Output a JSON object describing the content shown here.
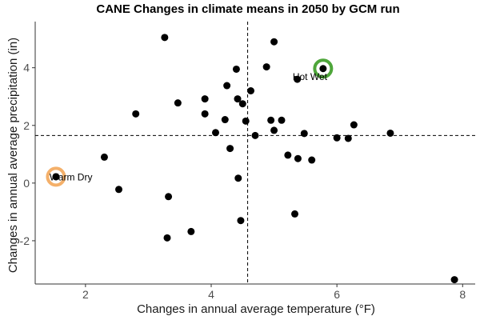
{
  "chart_data": {
    "type": "scatter",
    "title": "CANE Changes in climate means in 2050 by GCM run",
    "xlabel": "Changes in annual average temperature (°F)",
    "ylabel": "Changes in annual average precipitation (in)",
    "xlim": [
      1.2,
      8.2
    ],
    "ylim": [
      -3.5,
      5.6
    ],
    "x_ticks": [
      2,
      4,
      6,
      8
    ],
    "y_ticks": [
      -2,
      0,
      2,
      4
    ],
    "grid": false,
    "reference_lines": {
      "x": 4.58,
      "y": 1.65
    },
    "points": [
      {
        "x": 3.26,
        "y": 5.05
      },
      {
        "x": 5.0,
        "y": 4.9
      },
      {
        "x": 4.88,
        "y": 4.03
      },
      {
        "x": 4.4,
        "y": 3.95
      },
      {
        "x": 5.78,
        "y": 3.97
      },
      {
        "x": 5.37,
        "y": 3.6
      },
      {
        "x": 4.25,
        "y": 3.38
      },
      {
        "x": 4.63,
        "y": 3.2
      },
      {
        "x": 3.9,
        "y": 2.92
      },
      {
        "x": 4.42,
        "y": 2.92
      },
      {
        "x": 4.5,
        "y": 2.75
      },
      {
        "x": 3.47,
        "y": 2.78
      },
      {
        "x": 2.8,
        "y": 2.4
      },
      {
        "x": 3.9,
        "y": 2.4
      },
      {
        "x": 4.22,
        "y": 2.2
      },
      {
        "x": 4.55,
        "y": 2.15
      },
      {
        "x": 4.95,
        "y": 2.18
      },
      {
        "x": 5.12,
        "y": 2.18
      },
      {
        "x": 6.27,
        "y": 2.02
      },
      {
        "x": 5.0,
        "y": 1.83
      },
      {
        "x": 4.07,
        "y": 1.75
      },
      {
        "x": 4.7,
        "y": 1.65
      },
      {
        "x": 5.48,
        "y": 1.72
      },
      {
        "x": 6.85,
        "y": 1.73
      },
      {
        "x": 6.0,
        "y": 1.57
      },
      {
        "x": 6.18,
        "y": 1.55
      },
      {
        "x": 4.3,
        "y": 1.2
      },
      {
        "x": 5.22,
        "y": 0.97
      },
      {
        "x": 5.38,
        "y": 0.85
      },
      {
        "x": 5.6,
        "y": 0.8
      },
      {
        "x": 2.3,
        "y": 0.9
      },
      {
        "x": 1.53,
        "y": 0.22
      },
      {
        "x": 4.43,
        "y": 0.17
      },
      {
        "x": 2.53,
        "y": -0.22
      },
      {
        "x": 3.32,
        "y": -0.47
      },
      {
        "x": 5.33,
        "y": -1.07
      },
      {
        "x": 4.47,
        "y": -1.3
      },
      {
        "x": 3.68,
        "y": -1.68
      },
      {
        "x": 3.3,
        "y": -1.9
      },
      {
        "x": 7.87,
        "y": -3.35
      }
    ],
    "annotations": [
      {
        "label": "Warm Dry",
        "x": 1.53,
        "y": 0.22,
        "ring_color": "#f4b06a"
      },
      {
        "label": "Hot Wet",
        "x": 5.78,
        "y": 3.97,
        "ring_color": "#4ea63a"
      }
    ],
    "colors": {
      "points": "#000000",
      "reference_lines": "#000000",
      "axis": "#333333"
    }
  }
}
